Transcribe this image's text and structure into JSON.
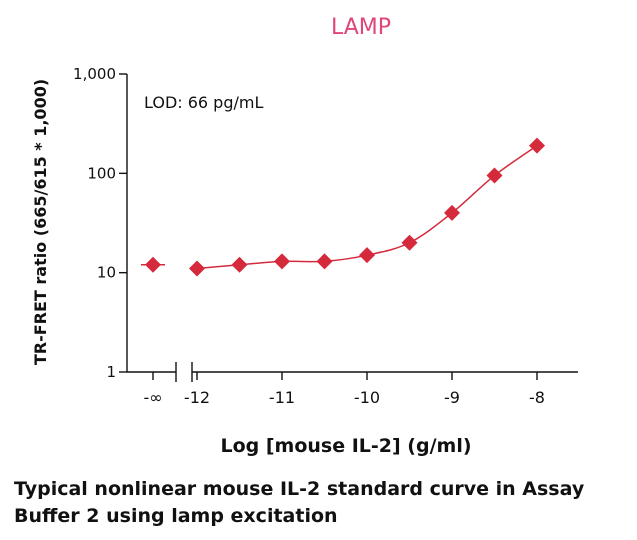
{
  "chart_data": {
    "type": "scatter",
    "title": "LAMP",
    "title_color": "#e0457b",
    "xlabel": "Log [mouse IL-2] (g/ml)",
    "ylabel": "TR-FRET ratio (665/615 * 1,000)",
    "annotation": "LOD: 66 pg/mL",
    "y_scale": "log",
    "ylim": [
      1,
      1000
    ],
    "y_ticks": [
      "1",
      "10",
      "100",
      "1,000"
    ],
    "x_tick_labels": [
      "-∞",
      "-12",
      "-11",
      "-10",
      "-9",
      "-8"
    ],
    "axis_break": true,
    "marker": "diamond",
    "series_color": "#d42a3c",
    "series": [
      {
        "x": [
          "-∞",
          -12,
          -11.5,
          -11,
          -10.5,
          -10,
          -9.5,
          -9,
          -8.5,
          -8
        ],
        "y": [
          12,
          11,
          12,
          13,
          13,
          15,
          20,
          40,
          95,
          190
        ]
      }
    ],
    "fit_curve": true,
    "grid": false
  },
  "caption": "Typical nonlinear mouse IL-2 standard curve in Assay\nBuffer 2 using lamp excitation"
}
